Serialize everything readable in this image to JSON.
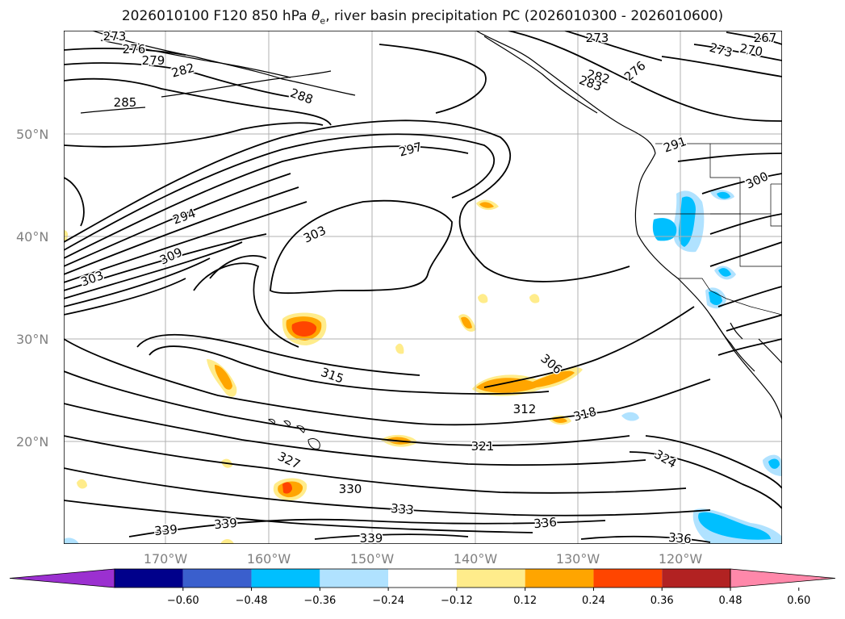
{
  "title": {
    "prefix": "2026010100 F120 850 hPa ",
    "symbol": "θ",
    "symbol_sub": "e",
    "suffix": ", river basin precipitation PC (2026010300 - 2026010600)"
  },
  "lat_labels": [
    "50°N",
    "40°N",
    "30°N",
    "20°N"
  ],
  "lon_labels": [
    "170°W",
    "160°W",
    "150°W",
    "140°W",
    "130°W",
    "120°W"
  ],
  "contour_labels": [
    "273",
    "276",
    "279",
    "282",
    "285",
    "288",
    "273",
    "267",
    "270",
    "273",
    "276",
    "282",
    "283",
    "291",
    "297",
    "294",
    "303",
    "309",
    "303",
    "300",
    "306",
    "315",
    "312",
    "318",
    "321",
    "324",
    "327",
    "330",
    "333",
    "339",
    "336",
    "339",
    "339",
    "336"
  ],
  "colorbar": {
    "ticks": [
      "−0.60",
      "−0.48",
      "−0.36",
      "−0.24",
      "−0.12",
      "0.12",
      "0.24",
      "0.36",
      "0.48",
      "0.60"
    ],
    "colors": [
      "#9b30d0",
      "#00008b",
      "#3a5fcd",
      "#00bfff",
      "#b0e2ff",
      "#ffffff",
      "#ffec8b",
      "#ffa500",
      "#ff4500",
      "#b22222",
      "#ff88aa"
    ]
  },
  "colors": {
    "positive_light": "#ffec8b",
    "positive_mid": "#ffa500",
    "positive_high": "#ff4500",
    "negative_light": "#b0e2ff",
    "negative_mid": "#00bfff"
  }
}
